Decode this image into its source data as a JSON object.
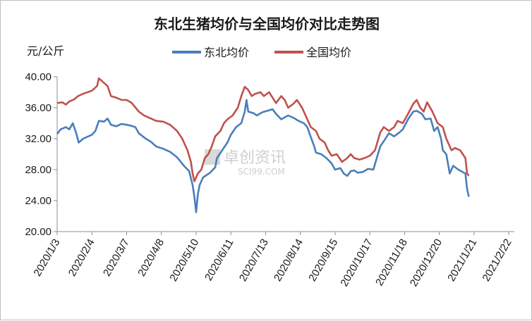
{
  "chart_data": {
    "type": "line",
    "title": "东北生猪均价与全国均价对比走势图",
    "ylabel": "元/公斤",
    "ylim": [
      20,
      40
    ],
    "yticks": [
      "20.00",
      "24.00",
      "28.00",
      "32.00",
      "36.00",
      "40.00"
    ],
    "legend_position": "top",
    "x_categories": [
      "2020/1/3",
      "2020/2/4",
      "2020/3/7",
      "2020/4/8",
      "2020/5/10",
      "2020/6/11",
      "2020/7/13",
      "2020/8/14",
      "2020/9/15",
      "2020/10/17",
      "2020/11/18",
      "2020/12/20",
      "2021/1/21",
      "2021/2/22"
    ],
    "series": [
      {
        "name": "东北均价",
        "color": "#4a7ebb",
        "values": [
          [
            0,
            32.6
          ],
          [
            0.1,
            33.2
          ],
          [
            0.25,
            33.5
          ],
          [
            0.35,
            33.2
          ],
          [
            0.45,
            34.0
          ],
          [
            0.55,
            32.7
          ],
          [
            0.62,
            31.5
          ],
          [
            0.75,
            32.0
          ],
          [
            1.0,
            32.5
          ],
          [
            1.1,
            33.0
          ],
          [
            1.2,
            34.3
          ],
          [
            1.35,
            34.2
          ],
          [
            1.45,
            34.6
          ],
          [
            1.55,
            33.8
          ],
          [
            1.7,
            33.6
          ],
          [
            1.85,
            33.9
          ],
          [
            2.0,
            33.8
          ],
          [
            2.1,
            33.7
          ],
          [
            2.25,
            33.5
          ],
          [
            2.35,
            32.7
          ],
          [
            2.55,
            32.0
          ],
          [
            2.7,
            31.6
          ],
          [
            2.85,
            31.0
          ],
          [
            3.05,
            30.7
          ],
          [
            3.25,
            30.3
          ],
          [
            3.45,
            29.6
          ],
          [
            3.65,
            28.5
          ],
          [
            3.8,
            27.8
          ],
          [
            3.9,
            26.0
          ],
          [
            3.95,
            24.5
          ],
          [
            4.0,
            22.5
          ],
          [
            4.05,
            24.8
          ],
          [
            4.1,
            26.0
          ],
          [
            4.2,
            27.0
          ],
          [
            4.4,
            27.6
          ],
          [
            4.55,
            28.3
          ],
          [
            4.6,
            29.5
          ],
          [
            4.75,
            30.5
          ],
          [
            4.9,
            31.5
          ],
          [
            5.0,
            32.5
          ],
          [
            5.15,
            33.5
          ],
          [
            5.3,
            34.0
          ],
          [
            5.4,
            35.5
          ],
          [
            5.45,
            37.0
          ],
          [
            5.5,
            35.5
          ],
          [
            5.65,
            35.3
          ],
          [
            5.75,
            35.0
          ],
          [
            5.9,
            35.4
          ],
          [
            6.05,
            35.6
          ],
          [
            6.2,
            35.8
          ],
          [
            6.3,
            35.2
          ],
          [
            6.45,
            34.5
          ],
          [
            6.65,
            35.0
          ],
          [
            6.8,
            34.7
          ],
          [
            6.95,
            34.3
          ],
          [
            7.1,
            34.0
          ],
          [
            7.2,
            33.5
          ],
          [
            7.3,
            32.2
          ],
          [
            7.4,
            31.0
          ],
          [
            7.45,
            30.2
          ],
          [
            7.6,
            30.0
          ],
          [
            7.75,
            29.5
          ],
          [
            7.9,
            28.8
          ],
          [
            8.0,
            28.0
          ],
          [
            8.15,
            28.2
          ],
          [
            8.25,
            27.5
          ],
          [
            8.35,
            27.2
          ],
          [
            8.45,
            27.8
          ],
          [
            8.55,
            27.9
          ],
          [
            8.65,
            27.6
          ],
          [
            8.8,
            27.7
          ],
          [
            8.95,
            28.1
          ],
          [
            9.1,
            28.0
          ],
          [
            9.2,
            29.5
          ],
          [
            9.3,
            31.0
          ],
          [
            9.45,
            32.0
          ],
          [
            9.55,
            32.7
          ],
          [
            9.7,
            32.3
          ],
          [
            9.85,
            32.8
          ],
          [
            9.95,
            33.2
          ],
          [
            10.1,
            34.5
          ],
          [
            10.25,
            35.5
          ],
          [
            10.35,
            35.6
          ],
          [
            10.5,
            35.2
          ],
          [
            10.6,
            34.5
          ],
          [
            10.75,
            34.6
          ],
          [
            10.85,
            33.0
          ],
          [
            10.95,
            33.5
          ],
          [
            11.05,
            32.0
          ],
          [
            11.1,
            30.5
          ],
          [
            11.2,
            30.0
          ],
          [
            11.3,
            27.5
          ],
          [
            11.4,
            28.5
          ],
          [
            11.55,
            28.0
          ],
          [
            11.75,
            27.5
          ],
          [
            11.8,
            25.5
          ],
          [
            11.85,
            24.5
          ]
        ]
      },
      {
        "name": "全国均价",
        "color": "#c0504d",
        "values": [
          [
            0,
            36.6
          ],
          [
            0.15,
            36.7
          ],
          [
            0.25,
            36.4
          ],
          [
            0.35,
            36.8
          ],
          [
            0.5,
            37.1
          ],
          [
            0.6,
            37.5
          ],
          [
            0.75,
            37.8
          ],
          [
            1.0,
            38.2
          ],
          [
            1.15,
            38.8
          ],
          [
            1.2,
            39.8
          ],
          [
            1.35,
            39.2
          ],
          [
            1.45,
            38.8
          ],
          [
            1.55,
            37.5
          ],
          [
            1.7,
            37.3
          ],
          [
            1.85,
            37.0
          ],
          [
            2.0,
            37.0
          ],
          [
            2.15,
            36.6
          ],
          [
            2.35,
            35.5
          ],
          [
            2.5,
            35.0
          ],
          [
            2.65,
            34.7
          ],
          [
            2.85,
            34.3
          ],
          [
            3.05,
            34.2
          ],
          [
            3.25,
            33.8
          ],
          [
            3.45,
            33.0
          ],
          [
            3.6,
            32.0
          ],
          [
            3.75,
            30.5
          ],
          [
            3.85,
            29.0
          ],
          [
            3.9,
            27.5
          ],
          [
            3.95,
            26.5
          ],
          [
            4.05,
            27.5
          ],
          [
            4.15,
            28.0
          ],
          [
            4.25,
            29.5
          ],
          [
            4.35,
            30.0
          ],
          [
            4.45,
            31.0
          ],
          [
            4.55,
            32.3
          ],
          [
            4.7,
            33.0
          ],
          [
            4.8,
            34.0
          ],
          [
            4.9,
            34.5
          ],
          [
            5.05,
            35.0
          ],
          [
            5.2,
            36.0
          ],
          [
            5.3,
            37.5
          ],
          [
            5.4,
            38.7
          ],
          [
            5.5,
            38.3
          ],
          [
            5.6,
            37.5
          ],
          [
            5.7,
            37.8
          ],
          [
            5.85,
            38.0
          ],
          [
            5.95,
            37.5
          ],
          [
            6.1,
            38.0
          ],
          [
            6.3,
            36.6
          ],
          [
            6.45,
            37.5
          ],
          [
            6.55,
            37.0
          ],
          [
            6.65,
            36.0
          ],
          [
            6.8,
            36.5
          ],
          [
            6.9,
            37.0
          ],
          [
            7.05,
            36.0
          ],
          [
            7.15,
            35.0
          ],
          [
            7.3,
            33.5
          ],
          [
            7.45,
            33.0
          ],
          [
            7.55,
            32.0
          ],
          [
            7.7,
            31.5
          ],
          [
            7.8,
            30.5
          ],
          [
            7.9,
            29.8
          ],
          [
            8.05,
            30.0
          ],
          [
            8.2,
            29.0
          ],
          [
            8.35,
            29.5
          ],
          [
            8.45,
            30.0
          ],
          [
            8.55,
            29.5
          ],
          [
            8.7,
            29.3
          ],
          [
            8.85,
            29.5
          ],
          [
            9.0,
            29.8
          ],
          [
            9.15,
            30.5
          ],
          [
            9.3,
            32.8
          ],
          [
            9.4,
            33.5
          ],
          [
            9.55,
            33.0
          ],
          [
            9.7,
            33.5
          ],
          [
            9.8,
            34.3
          ],
          [
            9.95,
            34.0
          ],
          [
            10.1,
            35.2
          ],
          [
            10.25,
            36.5
          ],
          [
            10.35,
            37.0
          ],
          [
            10.45,
            36.0
          ],
          [
            10.55,
            35.5
          ],
          [
            10.65,
            36.7
          ],
          [
            10.8,
            35.5
          ],
          [
            10.95,
            34.0
          ],
          [
            11.1,
            33.5
          ],
          [
            11.2,
            32.0
          ],
          [
            11.35,
            30.5
          ],
          [
            11.45,
            30.8
          ],
          [
            11.6,
            30.5
          ],
          [
            11.75,
            29.5
          ],
          [
            11.8,
            27.5
          ],
          [
            11.85,
            27.2
          ]
        ]
      }
    ]
  },
  "watermark": {
    "brand": "卓创资讯",
    "site": "SCI99.COM"
  }
}
